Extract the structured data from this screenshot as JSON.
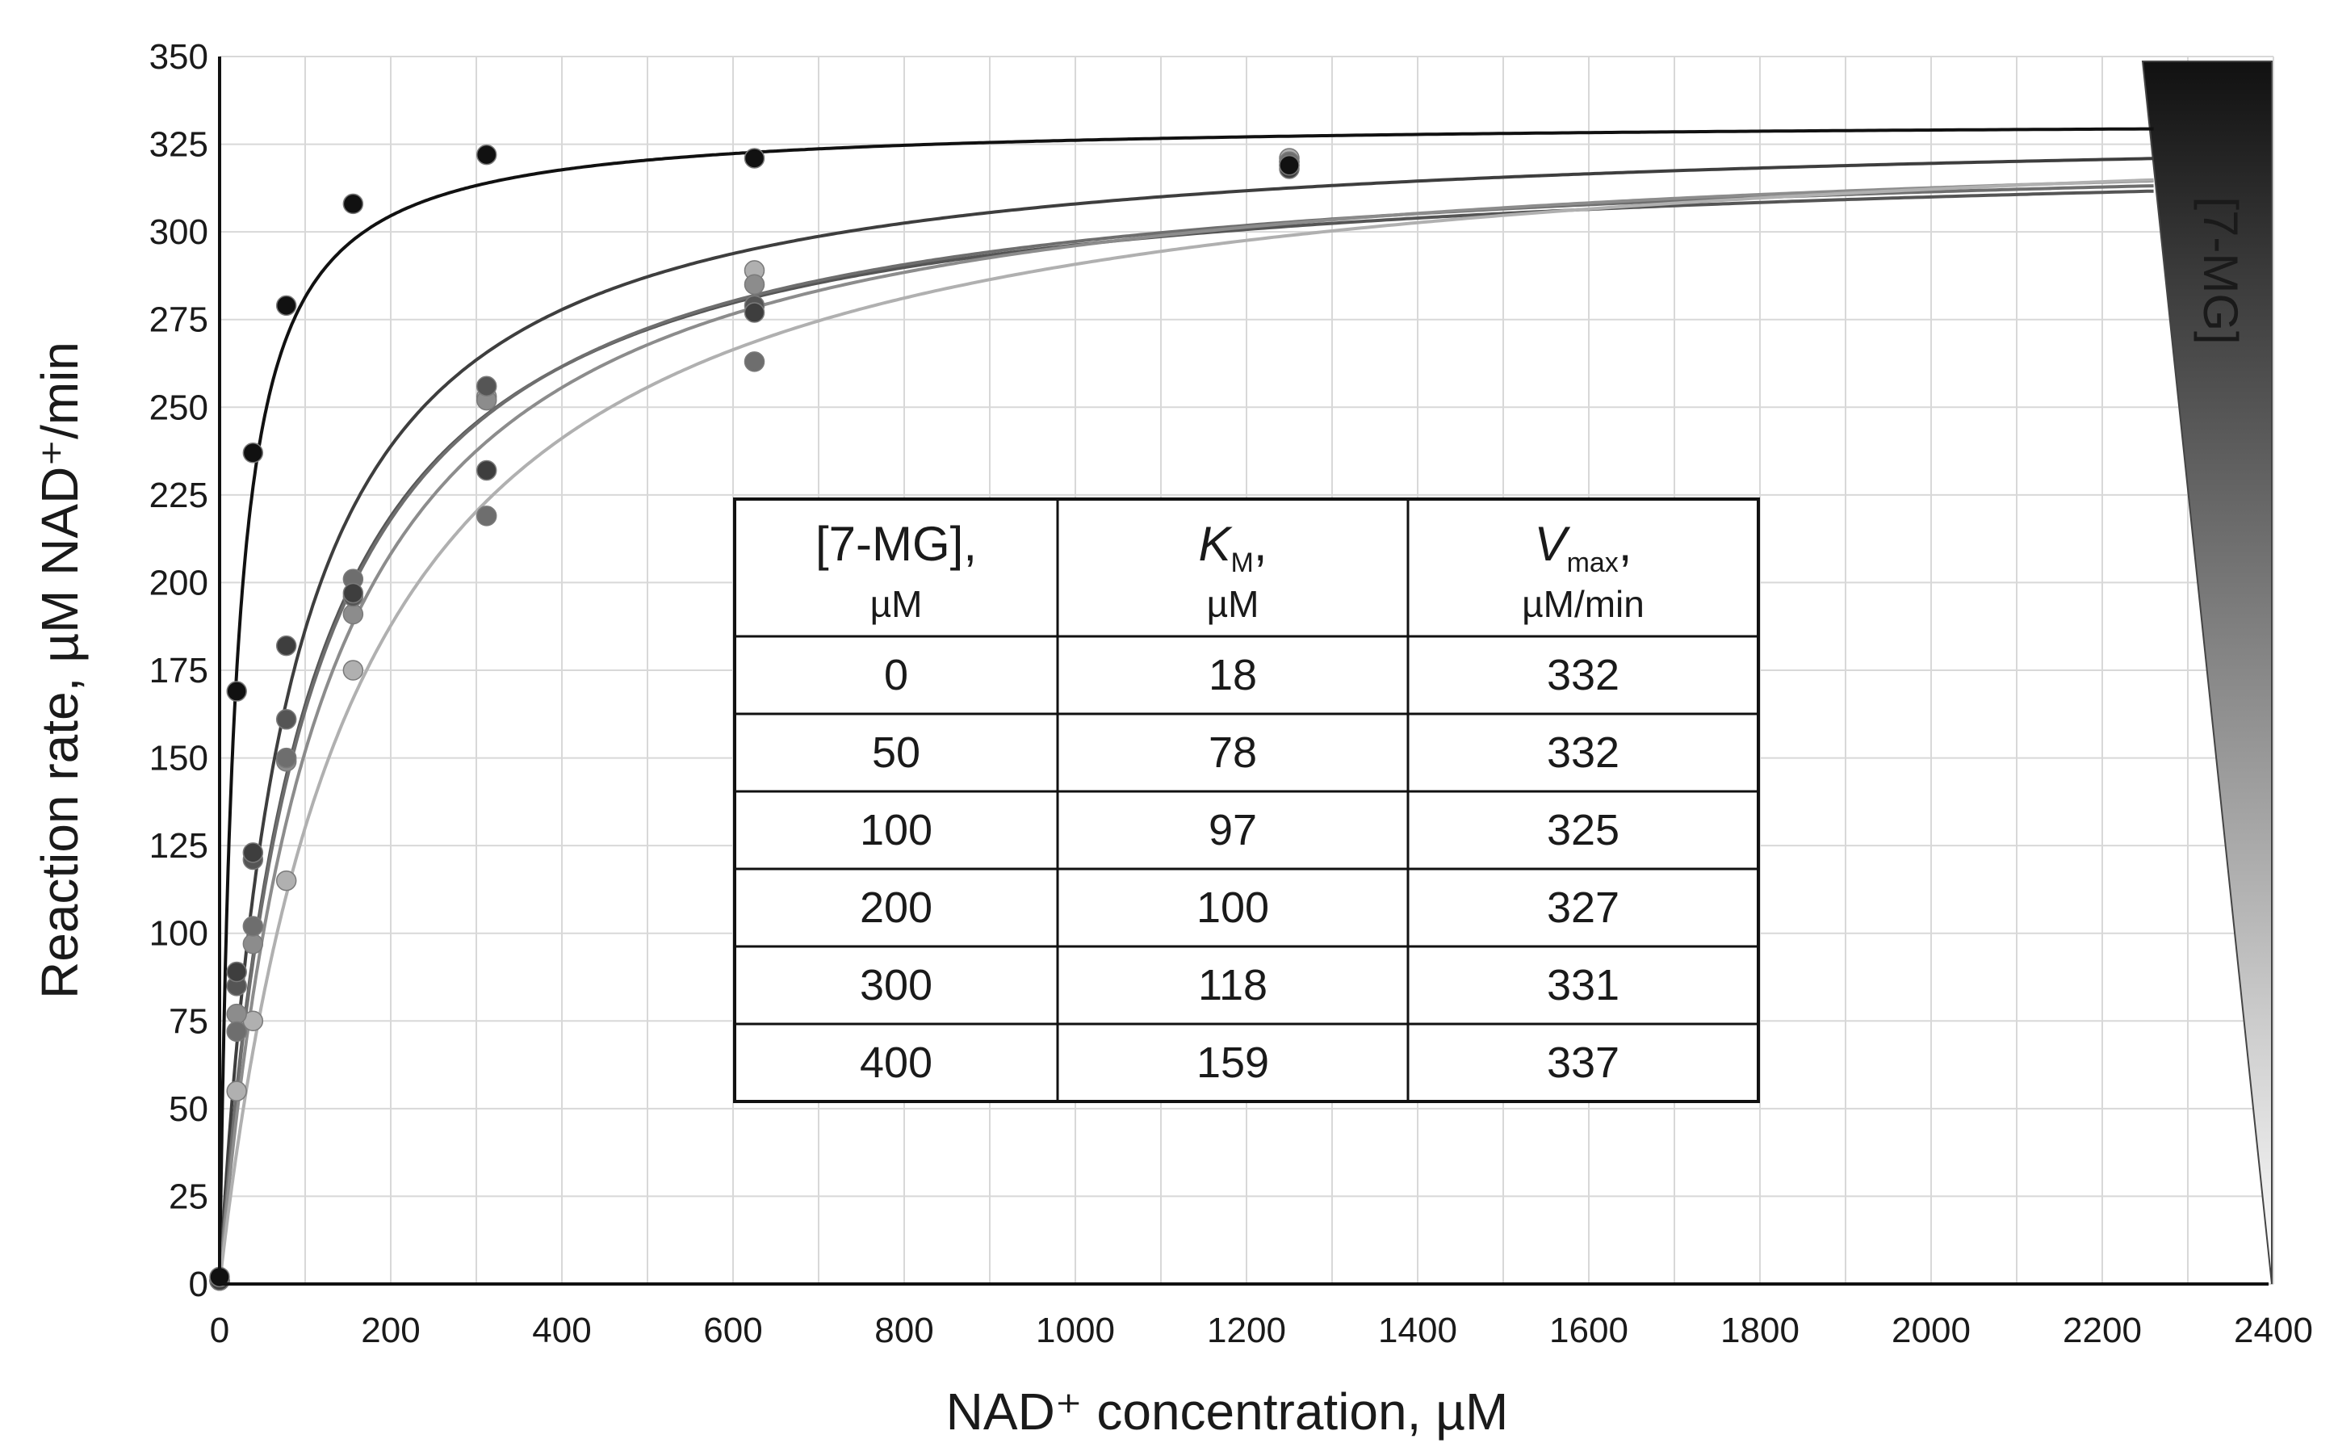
{
  "chart_data": {
    "type": "scatter",
    "xlabel": "NAD⁺ concentration, µM",
    "ylabel": "Reaction rate, µM NAD⁺/min",
    "xlim": [
      0,
      2400
    ],
    "ylim": [
      0,
      350
    ],
    "x_ticks": [
      "0",
      "200",
      "400",
      "600",
      "800",
      "1000",
      "1200",
      "1400",
      "1600",
      "1800",
      "2000",
      "2200",
      "2400"
    ],
    "y_ticks": [
      "0",
      "25",
      "50",
      "75",
      "100",
      "125",
      "150",
      "175",
      "200",
      "225",
      "250",
      "275",
      "300",
      "325",
      "350"
    ],
    "grid": true,
    "legend_label": "[7-MG]",
    "legend_placement": "right",
    "fit_model": "michaelis-menten",
    "series": [
      {
        "group": "0",
        "km": 18,
        "vmax": 332,
        "color": "#111111",
        "points": [
          [
            0,
            2
          ],
          [
            20,
            169
          ],
          [
            39,
            237
          ],
          [
            78,
            279
          ],
          [
            156,
            308
          ],
          [
            312,
            322
          ],
          [
            625,
            321
          ],
          [
            1250,
            319
          ]
        ]
      },
      {
        "group": "50",
        "km": 78,
        "vmax": 332,
        "color": "#3e3e3e",
        "points": [
          [
            0,
            1
          ],
          [
            20,
            89
          ],
          [
            39,
            123
          ],
          [
            78,
            182
          ],
          [
            156,
            197
          ],
          [
            312,
            232
          ],
          [
            625,
            277
          ],
          [
            1250,
            318
          ]
        ]
      },
      {
        "group": "100",
        "km": 97,
        "vmax": 325,
        "color": "#555555",
        "points": [
          [
            0,
            1
          ],
          [
            20,
            85
          ],
          [
            39,
            121
          ],
          [
            78,
            161
          ],
          [
            156,
            196
          ],
          [
            312,
            256
          ],
          [
            625,
            279
          ],
          [
            1250,
            319
          ]
        ]
      },
      {
        "group": "200",
        "km": 100,
        "vmax": 327,
        "color": "#6e6e6e",
        "points": [
          [
            0,
            1
          ],
          [
            20,
            72
          ],
          [
            39,
            102
          ],
          [
            78,
            150
          ],
          [
            156,
            201
          ],
          [
            312,
            219
          ],
          [
            625,
            263
          ],
          [
            1250,
            320
          ]
        ]
      },
      {
        "group": "300",
        "km": 118,
        "vmax": 331,
        "color": "#8c8c8c",
        "points": [
          [
            0,
            1
          ],
          [
            20,
            77
          ],
          [
            39,
            97
          ],
          [
            78,
            149
          ],
          [
            156,
            191
          ],
          [
            312,
            252
          ],
          [
            625,
            285
          ],
          [
            1250,
            320
          ]
        ]
      },
      {
        "group": "400",
        "km": 159,
        "vmax": 337,
        "color": "#b0b0b0",
        "points": [
          [
            0,
            1
          ],
          [
            20,
            55
          ],
          [
            39,
            75
          ],
          [
            78,
            115
          ],
          [
            156,
            175
          ],
          [
            312,
            253
          ],
          [
            625,
            289
          ],
          [
            1250,
            321
          ]
        ]
      }
    ],
    "table": {
      "headers": [
        {
          "main": "[7-MG],",
          "unit": "µM"
        },
        {
          "main": "K",
          "sub": "M",
          "comma": ",",
          "unit": "µM"
        },
        {
          "main": "V",
          "sub": "max",
          "comma": ",",
          "unit": "µM/min"
        }
      ],
      "rows": [
        [
          "0",
          "18",
          "332"
        ],
        [
          "50",
          "78",
          "332"
        ],
        [
          "100",
          "97",
          "325"
        ],
        [
          "200",
          "100",
          "327"
        ],
        [
          "300",
          "118",
          "331"
        ],
        [
          "400",
          "159",
          "337"
        ]
      ]
    }
  }
}
